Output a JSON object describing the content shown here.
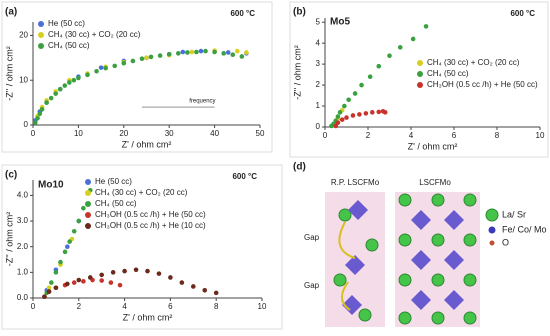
{
  "chart_data": [
    {
      "type": "scatter",
      "panel": "(a)",
      "temperature": "600 °C",
      "note": "frequency",
      "x_label": "Z' / ohm cm²",
      "y_label": "-Z'' / ohm cm²",
      "xlim": [
        0,
        50
      ],
      "xticks": [
        0,
        10,
        20,
        30,
        40,
        50
      ],
      "ylim": [
        0,
        23
      ],
      "yticks": [
        0,
        10,
        20
      ],
      "legend": "upper left",
      "series": [
        {
          "name": "He (50 cc)",
          "color": "#4a6fd8",
          "x": [
            0.5,
            1.5,
            3,
            6,
            10,
            15,
            20,
            25,
            30,
            33,
            37,
            43,
            47
          ],
          "values": [
            1,
            3,
            5,
            8,
            10.8,
            12.8,
            14.3,
            15,
            15.8,
            16.3,
            16.5,
            16.2,
            16
          ]
        },
        {
          "name": "CH₄ (30 cc) + CO₂ (20 cc)",
          "color": "#d8d020",
          "x": [
            1,
            2,
            3,
            5,
            8,
            12,
            16,
            20,
            25,
            30,
            35,
            40,
            45,
            47
          ],
          "values": [
            2,
            4,
            5.5,
            7.5,
            10,
            11.5,
            13,
            14,
            15,
            15.6,
            16.3,
            16.6,
            16.5,
            16.2
          ]
        },
        {
          "name": "CH₄ (50 cc)",
          "color": "#3aa040",
          "x": [
            0.5,
            1,
            1.5,
            2,
            3,
            4,
            5,
            6,
            7,
            8,
            9,
            10,
            12,
            14,
            16,
            18,
            20,
            22,
            24,
            26,
            28,
            30,
            32,
            34,
            36,
            38,
            40,
            42,
            44,
            46
          ],
          "values": [
            0.5,
            1.5,
            2.5,
            3.5,
            5,
            6,
            7,
            8,
            8.8,
            9.5,
            10,
            10.5,
            11.2,
            12,
            12.7,
            13.2,
            13.8,
            14.3,
            14.8,
            15.2,
            15.5,
            15.8,
            16,
            16.2,
            16.3,
            16.5,
            16.3,
            16,
            15.7,
            15.3
          ]
        }
      ]
    },
    {
      "type": "scatter",
      "panel": "(b)",
      "title": "Mo5",
      "temperature": "600 °C",
      "x_label": "Z' / ohm cm²",
      "y_label": "-Z'' / ohm cm²",
      "xlim": [
        0,
        10
      ],
      "xticks": [
        0,
        2,
        4,
        6,
        8,
        10
      ],
      "ylim": [
        0,
        5.2
      ],
      "yticks": [
        0,
        1,
        2,
        3,
        4,
        5
      ],
      "legend": "right",
      "series": [
        {
          "name": "CH₄ (30 cc) + CO₂ (20 cc)",
          "color": "#d8d020",
          "x": [
            0.4,
            0.6,
            0.8
          ],
          "values": [
            0.1,
            0.4,
            0.8
          ]
        },
        {
          "name": "CH₄ (50 cc)",
          "color": "#3aa040",
          "x": [
            0.3,
            0.4,
            0.5,
            0.6,
            0.7,
            0.9,
            1.1,
            1.4,
            1.7,
            2.1,
            2.5,
            3,
            3.5,
            4.1,
            4.7
          ],
          "values": [
            0.05,
            0.15,
            0.3,
            0.5,
            0.7,
            1,
            1.3,
            1.6,
            2,
            2.4,
            2.9,
            3.4,
            3.8,
            4.2,
            4.8
          ]
        },
        {
          "name": "CH₃OH (0.5 cc /h) + He (50 cc)",
          "color": "#c8342c",
          "x": [
            0.5,
            0.6,
            0.8,
            1,
            1.3,
            1.6,
            1.9,
            2.2,
            2.5,
            2.7,
            2.8
          ],
          "values": [
            0.05,
            0.2,
            0.35,
            0.45,
            0.55,
            0.6,
            0.65,
            0.7,
            0.72,
            0.75,
            0.7
          ]
        }
      ]
    },
    {
      "type": "scatter",
      "panel": "(c)",
      "title": "Mo10",
      "temperature": "600 °C",
      "x_label": "Z' / ohm cm²",
      "y_label": "-Z'' / ohm cm²",
      "xlim": [
        0,
        10
      ],
      "xticks": [
        0,
        2,
        4,
        6,
        8,
        10
      ],
      "ylim": [
        0,
        4.6
      ],
      "yticks": [
        {
          "value": 0,
          "label": "0.0"
        },
        {
          "value": 1,
          "label": "1.0"
        },
        {
          "value": 2,
          "label": "2.0"
        },
        {
          "value": 3,
          "label": "3.0"
        },
        {
          "value": 4,
          "label": "4.0"
        }
      ],
      "legend": "upper center",
      "series": [
        {
          "name": "He (50 cc)",
          "color": "#4a6fd8",
          "x": [
            0.6,
            1,
            1.5,
            2
          ],
          "values": [
            0.3,
            1.1,
            2,
            3
          ]
        },
        {
          "name": "CH₄ (30 cc) + CO₂ (20 cc)",
          "color": "#d8d020",
          "x": [
            0.7,
            1.2,
            1.7
          ],
          "values": [
            0.4,
            1.3,
            2.3
          ]
        },
        {
          "name": "CH₄ (50 cc)",
          "color": "#3aa040",
          "x": [
            0.6,
            0.8,
            1,
            1.2,
            1.4,
            1.6,
            1.8,
            2,
            2.2,
            2.5
          ],
          "values": [
            0.2,
            0.6,
            1,
            1.4,
            1.8,
            2.2,
            2.6,
            3,
            3.5,
            4.2
          ]
        },
        {
          "name": "CH₃OH (0.5 cc /h) + He (50 cc)",
          "color": "#c8342c",
          "x": [
            0.5,
            0.7,
            1,
            1.4,
            1.8,
            2.2,
            2.6,
            3,
            3.4,
            3.8
          ],
          "values": [
            0.05,
            0.25,
            0.4,
            0.5,
            0.6,
            0.65,
            0.7,
            0.68,
            0.6,
            0.5
          ]
        },
        {
          "name": "CH₃OH (0.5 cc /h) + He (10 cc)",
          "color": "#6b2a1a",
          "x": [
            0.5,
            0.7,
            1,
            1.5,
            2,
            2.5,
            3,
            3.5,
            4,
            4.5,
            5,
            5.5,
            6,
            6.5,
            7,
            7.5,
            8
          ],
          "values": [
            0.05,
            0.25,
            0.4,
            0.55,
            0.7,
            0.8,
            0.9,
            1,
            1.05,
            1.1,
            1.05,
            0.95,
            0.8,
            0.6,
            0.45,
            0.3,
            0.2
          ]
        }
      ]
    }
  ],
  "diagram": {
    "panel": "(d)",
    "structures": [
      "R.P. LSCFMo",
      "LSCFMo"
    ],
    "gap": "Gap",
    "legend": [
      "La/ Sr",
      "Fe/ Co/ Mo",
      "O"
    ]
  }
}
